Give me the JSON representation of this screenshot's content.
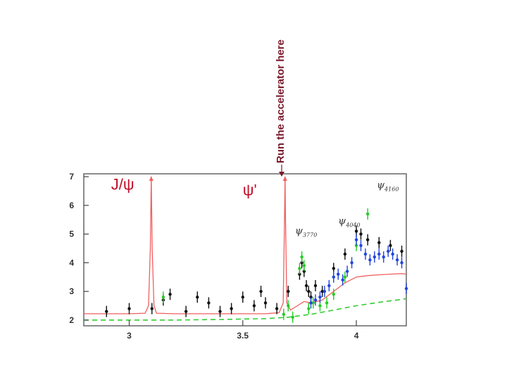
{
  "annotation": {
    "text": "Run the accelerator here",
    "color": "#7a1a2c"
  },
  "chart_data": {
    "type": "scatter",
    "title": "",
    "xlabel": "",
    "ylabel": "",
    "xlim": [
      2.8,
      4.22
    ],
    "ylim": [
      1.8,
      7.1
    ],
    "xticks": [
      "3",
      "3.5",
      "4"
    ],
    "yticks": [
      "2",
      "3",
      "4",
      "5",
      "6",
      "7"
    ],
    "grid": false,
    "peak_labels": [
      {
        "text": "J/ψ",
        "x": 2.92,
        "y": 6.55,
        "color": "#c0102a"
      },
      {
        "text": "ψ'",
        "x": 3.5,
        "y": 6.35,
        "color": "#c0102a"
      },
      {
        "text": "ψ",
        "sub": "3770",
        "x": 3.73,
        "y": 5.0,
        "color": "#333333"
      },
      {
        "text": "ψ",
        "sub": "4040",
        "x": 3.92,
        "y": 5.35,
        "color": "#333333"
      },
      {
        "text": "ψ",
        "sub": "4160",
        "x": 4.09,
        "y": 6.6,
        "color": "#333333"
      }
    ],
    "series": [
      {
        "style": "line",
        "color": "#f06060",
        "x": [
          2.8,
          3.0,
          3.07,
          3.085,
          3.093,
          3.097,
          3.101,
          3.109,
          3.12,
          3.2,
          3.4,
          3.6,
          3.66,
          3.678,
          3.684,
          3.686,
          3.688,
          3.694,
          3.71,
          3.74,
          3.77,
          3.8,
          3.85,
          3.9,
          3.95,
          4.0,
          4.05,
          4.1,
          4.15,
          4.2,
          4.22
        ],
        "y": [
          2.22,
          2.22,
          2.24,
          2.5,
          4.5,
          7.0,
          4.5,
          2.5,
          2.24,
          2.22,
          2.22,
          2.22,
          2.26,
          2.6,
          5.6,
          7.0,
          5.6,
          2.6,
          2.35,
          2.5,
          2.65,
          2.6,
          2.7,
          3.0,
          3.3,
          3.5,
          3.55,
          3.58,
          3.6,
          3.62,
          3.6
        ]
      },
      {
        "style": "dashed",
        "color": "#33cc33",
        "x": [
          2.8,
          3.0,
          3.2,
          3.4,
          3.6,
          3.7,
          3.8,
          3.9,
          4.0,
          4.1,
          4.2,
          4.22
        ],
        "y": [
          2.0,
          2.0,
          2.0,
          2.02,
          2.05,
          2.1,
          2.2,
          2.35,
          2.5,
          2.62,
          2.72,
          2.75
        ]
      },
      {
        "style": "markers",
        "color": "#111111",
        "x": [
          2.9,
          3.0,
          3.1,
          3.15,
          3.18,
          3.25,
          3.3,
          3.35,
          3.4,
          3.45,
          3.5,
          3.55,
          3.58,
          3.6,
          3.65,
          3.7,
          3.75,
          3.76,
          3.77,
          3.78,
          3.79,
          3.8,
          3.82,
          3.85,
          3.9,
          3.95,
          4.0,
          4.02,
          4.05,
          4.1,
          4.15,
          4.2
        ],
        "y": [
          2.3,
          2.4,
          2.4,
          2.7,
          2.9,
          2.3,
          2.8,
          2.6,
          2.3,
          2.4,
          2.8,
          2.5,
          3.0,
          2.6,
          2.4,
          3.0,
          3.6,
          4.0,
          3.7,
          3.2,
          3.0,
          2.8,
          3.2,
          3.0,
          3.8,
          4.3,
          5.1,
          5.0,
          4.8,
          4.7,
          4.6,
          4.4
        ]
      },
      {
        "style": "markers",
        "color": "#22cc22",
        "x": [
          3.15,
          3.68,
          3.7,
          3.72,
          3.75,
          3.76,
          3.77,
          3.79,
          3.81,
          3.84,
          3.87,
          3.9,
          3.95,
          4.0,
          4.05
        ],
        "y": [
          2.8,
          2.2,
          2.5,
          2.1,
          3.8,
          4.2,
          3.9,
          2.4,
          2.6,
          2.5,
          2.6,
          2.9,
          3.5,
          4.6,
          5.7
        ]
      },
      {
        "style": "markers",
        "color": "#2244dd",
        "x": [
          3.8,
          3.82,
          3.84,
          3.86,
          3.88,
          3.9,
          3.92,
          3.94,
          3.96,
          3.98,
          4.0,
          4.02,
          4.04,
          4.06,
          4.08,
          4.1,
          4.12,
          4.14,
          4.16,
          4.18,
          4.2,
          4.22
        ],
        "y": [
          2.6,
          2.7,
          2.8,
          3.0,
          3.2,
          3.5,
          3.6,
          3.4,
          3.7,
          4.0,
          4.8,
          4.6,
          4.3,
          4.1,
          4.2,
          4.3,
          4.2,
          4.4,
          4.3,
          4.1,
          4.0,
          3.1
        ]
      }
    ]
  }
}
